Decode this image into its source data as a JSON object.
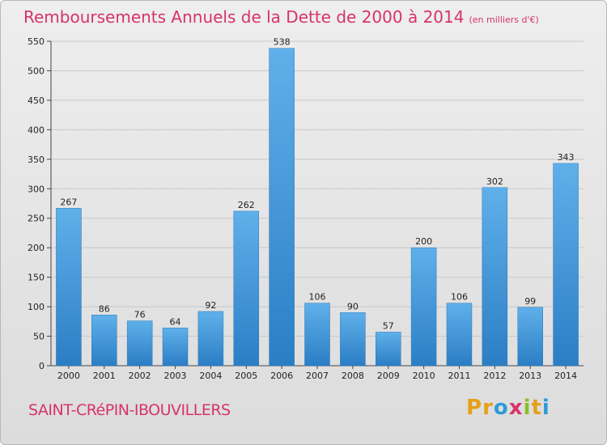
{
  "header": {
    "title": "Remboursements Annuels de la Dette de 2000 à 2014",
    "subtitle": "(en milliers d'€)"
  },
  "footer": {
    "commune": "SAINT-CRéPIN-IBOUVILLERS",
    "brand_letters": [
      "P",
      "r",
      "o",
      "x",
      "i",
      "t",
      "i"
    ],
    "brand_colors": [
      "#e5a019",
      "#e5a019",
      "#2e9ad8",
      "#d6336c",
      "#8bbd2b",
      "#e5a019",
      "#2e9ad8"
    ]
  },
  "colors": {
    "title": "#d6336c",
    "bar_light": "#5fb0ea",
    "bar_dark": "#2b7ec4",
    "grid": "#c8c8c8"
  },
  "chart_data": {
    "type": "bar",
    "categories": [
      "2000",
      "2001",
      "2002",
      "2003",
      "2004",
      "2005",
      "2006",
      "2007",
      "2008",
      "2009",
      "2010",
      "2011",
      "2012",
      "2013",
      "2014"
    ],
    "values": [
      267,
      86,
      76,
      64,
      92,
      262,
      538,
      106,
      90,
      57,
      200,
      106,
      302,
      99,
      343
    ],
    "ylim": [
      0,
      550
    ],
    "yticks": [
      0,
      50,
      100,
      150,
      200,
      250,
      300,
      350,
      400,
      450,
      500,
      550
    ],
    "grid": true,
    "xlabel": "",
    "ylabel": ""
  }
}
